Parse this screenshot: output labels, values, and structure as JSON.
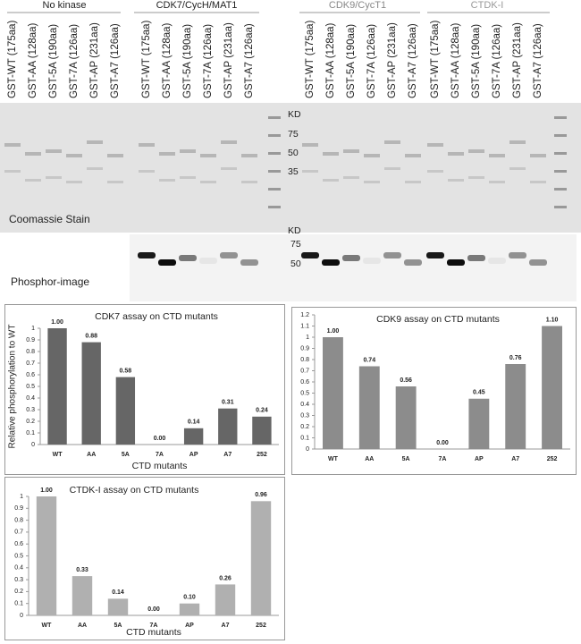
{
  "gel": {
    "groups": [
      "No kinase",
      "CDK7/CycH/MAT1",
      "CDK9/CycT1",
      "CTDK-I"
    ],
    "lanes": [
      "GST-WT (175aa)",
      "GST-AA (128aa)",
      "GST-5A (190aa)",
      "GST-7A (126aa)",
      "GST-AP (231aa)",
      "GST-A7 (126aa)"
    ],
    "coomassie_unit": "KD",
    "coomassie_markers": [
      75,
      50,
      35
    ],
    "phosphor_unit": "KD",
    "phosphor_markers": [
      75,
      50
    ],
    "coomassie_label": "Coomassie Stain",
    "phosphor_label": "Phosphor-image"
  },
  "chart_data": [
    {
      "type": "bar",
      "title": "CDK7 assay on CTD mutants",
      "y_label": "Relative phosphorylation to WT",
      "x_label": "CTD mutants",
      "categories": [
        "WT",
        "AA",
        "5A",
        "7A",
        "AP",
        "A7",
        "252"
      ],
      "values": [
        1.0,
        0.88,
        0.58,
        0.0,
        0.14,
        0.31,
        0.24
      ],
      "value_labels": [
        "1.00",
        "0.88",
        "0.58",
        "0.00",
        "0.14",
        "0.31",
        "0.24"
      ],
      "color": "#666666",
      "ylim": [
        0,
        1
      ],
      "yticks": [
        0,
        0.1,
        0.2,
        0.3,
        0.4,
        0.5,
        0.6,
        0.7,
        0.8,
        0.9,
        1
      ]
    },
    {
      "type": "bar",
      "title": "CDK9 assay on CTD mutants",
      "categories": [
        "WT",
        "AA",
        "5A",
        "7A",
        "AP",
        "A7",
        "252"
      ],
      "values": [
        1.0,
        0.74,
        0.56,
        0.0,
        0.45,
        0.76,
        1.1
      ],
      "value_labels": [
        "1.00",
        "0.74",
        "0.56",
        "0.00",
        "0.45",
        "0.76",
        "1.10"
      ],
      "color": "#8c8c8c",
      "ylim": [
        0,
        1.2
      ],
      "yticks": [
        0,
        0.1,
        0.2,
        0.3,
        0.4,
        0.5,
        0.6,
        0.7,
        0.8,
        0.9,
        1,
        1.1,
        1.2
      ]
    },
    {
      "type": "bar",
      "title": "CTDK-I assay on CTD mutants",
      "x_label": "CTD mutants",
      "categories": [
        "WT",
        "AA",
        "5A",
        "7A",
        "AP",
        "A7",
        "252"
      ],
      "values": [
        1.0,
        0.33,
        0.14,
        0.0,
        0.1,
        0.26,
        0.96
      ],
      "value_labels": [
        "1.00",
        "0.33",
        "0.14",
        "0.00",
        "0.10",
        "0.26",
        "0.96"
      ],
      "color": "#b0b0b0",
      "ylim": [
        0,
        1
      ],
      "yticks": [
        0,
        0.1,
        0.2,
        0.3,
        0.4,
        0.5,
        0.6,
        0.7,
        0.8,
        0.9,
        1
      ]
    }
  ]
}
